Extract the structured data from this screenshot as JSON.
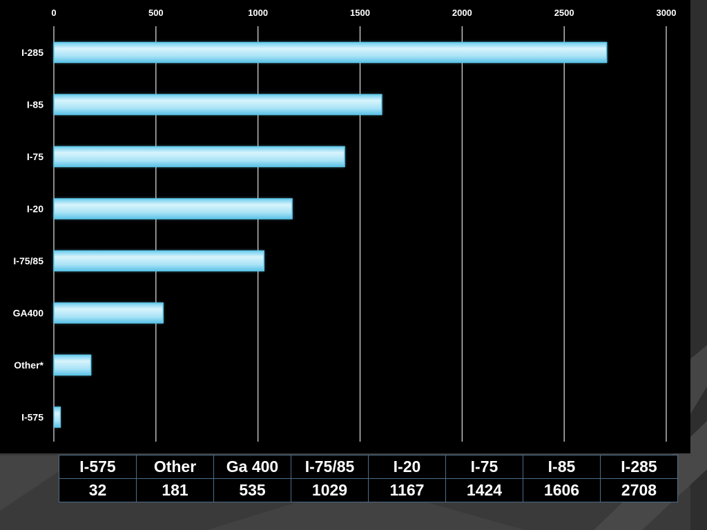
{
  "chart_data": {
    "type": "bar",
    "orientation": "horizontal",
    "categories": [
      "I-285",
      "I-85",
      "I-75",
      "I-20",
      "I-75/85",
      "GA400",
      "Other*",
      "I-575"
    ],
    "values": [
      2708,
      1606,
      1424,
      1167,
      1029,
      535,
      181,
      32
    ],
    "xlim": [
      0,
      3000
    ],
    "x_ticks": [
      0,
      500,
      1000,
      1500,
      2000,
      2500,
      3000
    ],
    "x_axis_position": "top",
    "grid": true,
    "legend": "none",
    "title": "",
    "xlabel": "",
    "ylabel": ""
  },
  "data_table": {
    "headers": [
      "I-575",
      "Other",
      "Ga 400",
      "I-75/85",
      "I-20",
      "I-75",
      "I-85",
      "I-285"
    ],
    "values": [
      "32",
      "181",
      "535",
      "1029",
      "1167",
      "1424",
      "1606",
      "2708"
    ]
  },
  "colors": {
    "background": "#3a3a3a",
    "plot_background": "#000000",
    "bar_fill": "#aee6f7",
    "bar_edge": "#5fc8ea",
    "gridline": "#e6e6e6",
    "text": "#ffffff"
  }
}
